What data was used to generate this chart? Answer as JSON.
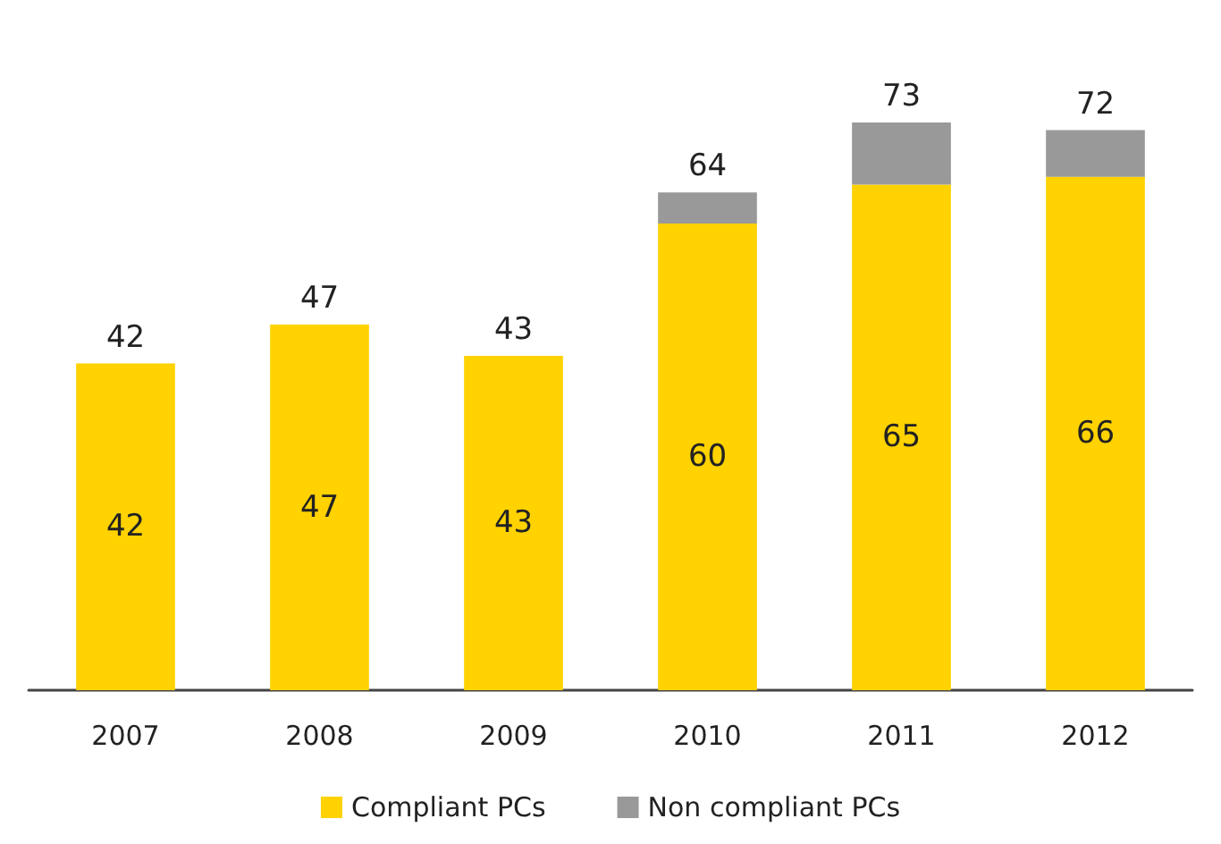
{
  "chart_data": {
    "type": "bar",
    "stacked": true,
    "categories": [
      "2007",
      "2008",
      "2009",
      "2010",
      "2011",
      "2012"
    ],
    "series": [
      {
        "name": "Compliant PCs",
        "color": "#ffd200",
        "values": [
          42,
          47,
          43,
          60,
          65,
          66
        ],
        "value_labels": [
          "42",
          "47",
          "43",
          "60",
          "65",
          "66"
        ]
      },
      {
        "name": "Non compliant PCs",
        "color": "#999999",
        "values": [
          null,
          null,
          null,
          4,
          8,
          6
        ]
      }
    ],
    "totals": [
      "42",
      "47",
      "43",
      "64",
      "73",
      "72"
    ],
    "tick_labels": "x",
    "legend": "bottom"
  }
}
